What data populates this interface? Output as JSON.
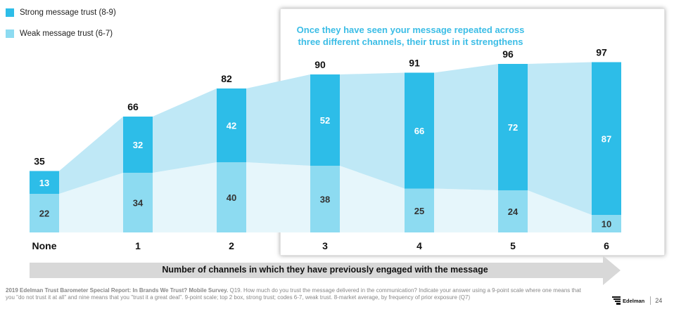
{
  "legend": [
    {
      "label": "Strong message trust (8-9)",
      "color": "#2dbde8"
    },
    {
      "label": "Weak message trust (6-7)",
      "color": "#8ddbf1"
    }
  ],
  "callout": {
    "line1": "Once they have seen your message repeated across",
    "line2": "three different channels, their trust in it strengthens"
  },
  "chart_data": {
    "type": "bar",
    "stacked": true,
    "categories": [
      "None",
      "1",
      "2",
      "3",
      "4",
      "5",
      "6"
    ],
    "series": [
      {
        "name": "Weak message trust (6-7)",
        "values": [
          22,
          34,
          40,
          38,
          25,
          24,
          10
        ],
        "color": "#8ddbf1"
      },
      {
        "name": "Strong message trust (8-9)",
        "values": [
          13,
          32,
          42,
          52,
          66,
          72,
          87
        ],
        "color": "#2dbde8"
      }
    ],
    "totals": [
      35,
      66,
      82,
      90,
      91,
      96,
      97
    ],
    "ylim": [
      0,
      100
    ],
    "xlabel": "Number of channels in which they have previously engaged with the message"
  },
  "xaxis_label": "Number of channels in which they have previously engaged with the message",
  "footnote": {
    "source": "2019 Edelman Trust Barometer Special Report: In Brands We Trust? Mobile Survey.",
    "text": "Q19. How much do you trust the message delivered in the communication? Indicate your answer using a 9-point scale where one means that you \"do not trust it at all\" and nine means that you \"trust it a great deal\". 9-point scale; top 2 box, strong trust; codes 6-7, weak trust. 8-market average, by frequency of prior exposure (Q7)"
  },
  "brand": {
    "name": "Edelman"
  },
  "page_number": "24"
}
